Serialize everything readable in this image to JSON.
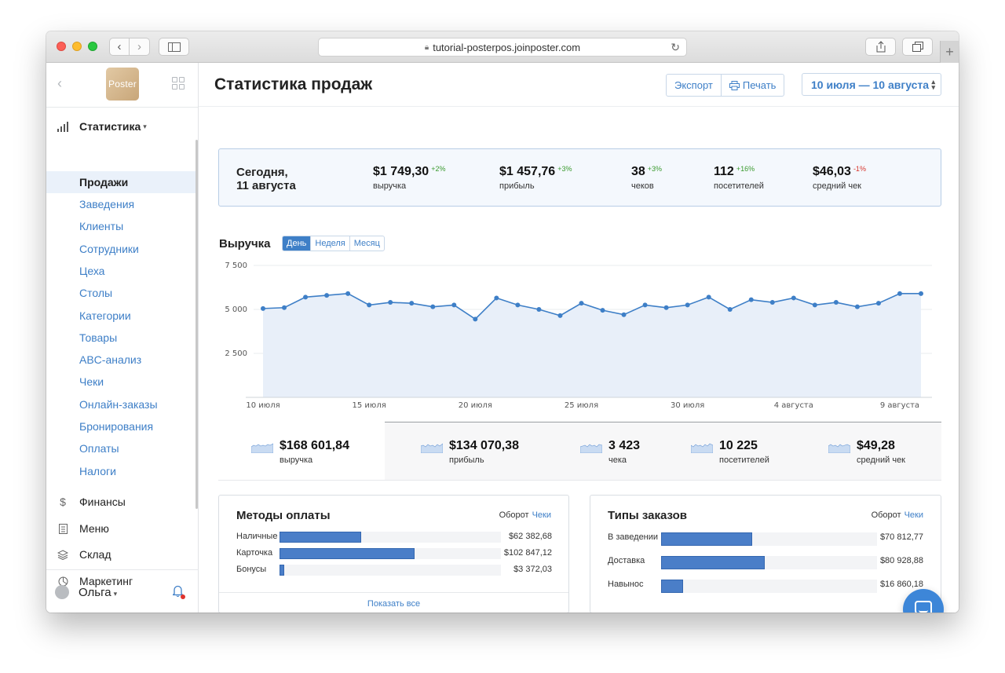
{
  "browser": {
    "url": "tutorial-posterpos.joinposter.com"
  },
  "sidebar": {
    "logo_text": "Poster",
    "sections": [
      {
        "label": "Статистика",
        "icon": "bar-chart-icon",
        "caret": "▾"
      },
      {
        "label": "Финансы",
        "icon": "dollar-icon"
      },
      {
        "label": "Меню",
        "icon": "document-icon"
      },
      {
        "label": "Склад",
        "icon": "layers-icon"
      },
      {
        "label": "Маркетинг",
        "icon": "pie-icon"
      }
    ],
    "stats_items": [
      {
        "label": "Продажи",
        "active": true
      },
      {
        "label": "Заведения"
      },
      {
        "label": "Клиенты"
      },
      {
        "label": "Сотрудники"
      },
      {
        "label": "Цеха"
      },
      {
        "label": "Столы"
      },
      {
        "label": "Категории"
      },
      {
        "label": "Товары"
      },
      {
        "label": "ABC-анализ"
      },
      {
        "label": "Чеки"
      },
      {
        "label": "Онлайн-заказы"
      },
      {
        "label": "Бронирования"
      },
      {
        "label": "Оплаты"
      },
      {
        "label": "Налоги"
      }
    ],
    "user": "Ольга"
  },
  "header": {
    "title": "Статистика продаж",
    "export_label": "Экспорт",
    "print_label": "Печать",
    "date_range": "10 июля — 10 августа"
  },
  "today": {
    "label_line1": "Сегодня,",
    "label_line2": "11 августа",
    "kpis": [
      {
        "value": "$1 749,30",
        "delta": "+2%",
        "trend": "up",
        "label": "выручка"
      },
      {
        "value": "$1 457,76",
        "delta": "+3%",
        "trend": "up",
        "label": "прибыль"
      },
      {
        "value": "38",
        "delta": "+3%",
        "trend": "up",
        "label": "чеков"
      },
      {
        "value": "112",
        "delta": "+16%",
        "trend": "up",
        "label": "посетителей"
      },
      {
        "value": "$46,03",
        "delta": "-1%",
        "trend": "down",
        "label": "средний чек"
      }
    ]
  },
  "revenue": {
    "title": "Выручка",
    "periods": [
      "День",
      "Неделя",
      "Месяц"
    ],
    "selected_period": "День"
  },
  "chart_data": {
    "type": "area",
    "title": "Выручка",
    "ylim": [
      0,
      7500
    ],
    "yticks": [
      2500,
      5000,
      7500
    ],
    "ytick_labels": [
      "2 500",
      "5 000",
      "7 500"
    ],
    "xtick_labels": [
      "10 июля",
      "15 июля",
      "20 июля",
      "25 июля",
      "30 июля",
      "4 августа",
      "9 августа"
    ],
    "xtick_index": [
      0,
      5,
      10,
      15,
      20,
      25,
      30
    ],
    "grid": true,
    "series": [
      {
        "values": [
          5050,
          5100,
          5700,
          5800,
          5900,
          5250,
          5400,
          5350,
          5150,
          5250,
          4450,
          5650,
          5250,
          5000,
          4650,
          5350,
          4950,
          4700,
          5250,
          5100,
          5250,
          5700,
          5000,
          5550,
          5400,
          5650,
          5250,
          5400,
          5150,
          5350,
          5900,
          5900
        ]
      }
    ],
    "colors": {
      "line": "#3e7fc7",
      "fill": "#e8eff9"
    }
  },
  "totals": [
    {
      "value": "$168 601,84",
      "label": "выручка"
    },
    {
      "value": "$134 070,38",
      "label": "прибыль"
    },
    {
      "value": "3 423",
      "label": "чека"
    },
    {
      "value": "10 225",
      "label": "посетителей"
    },
    {
      "value": "$49,28",
      "label": "средний чек"
    }
  ],
  "payment_methods": {
    "title": "Методы оплаты",
    "toggle_left": "Оборот",
    "toggle_right": "Чеки",
    "rows": [
      {
        "label": "Наличные",
        "value": "$62 382,68",
        "share": 0.37
      },
      {
        "label": "Карточка",
        "value": "$102 847,12",
        "share": 0.61
      },
      {
        "label": "Бонусы",
        "value": "$3 372,03",
        "share": 0.02
      }
    ],
    "show_all": "Показать все"
  },
  "order_types": {
    "title": "Типы заказов",
    "toggle_left": "Оборот",
    "toggle_right": "Чеки",
    "rows": [
      {
        "label": "В заведении",
        "value": "$70 812,77",
        "share": 0.42
      },
      {
        "label": "Доставка",
        "value": "$80 928,88",
        "share": 0.48
      },
      {
        "label": "Навынос",
        "value": "$16 860,18",
        "share": 0.1
      }
    ]
  },
  "colors": {
    "accent": "#3e7fc7",
    "bar": "#4a7ec8",
    "positive": "#3a9a2e",
    "negative": "#d8342c"
  }
}
